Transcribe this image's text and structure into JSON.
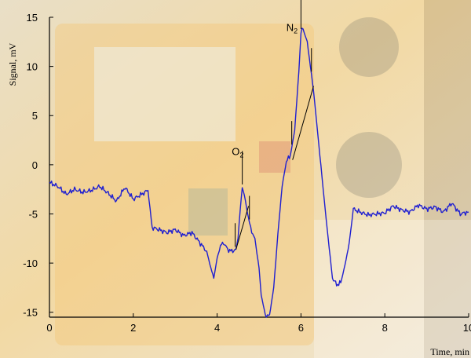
{
  "chart_data": {
    "type": "line",
    "xlabel": "Time, min",
    "ylabel": "Signal, mV",
    "xlim": [
      0,
      10
    ],
    "ylim": [
      -15.5,
      15
    ],
    "x_ticks": [
      0,
      2,
      4,
      6,
      8,
      10
    ],
    "y_ticks": [
      15,
      10,
      5,
      0,
      -5,
      -10,
      -15
    ],
    "grid": false,
    "legend": "none",
    "series": [
      {
        "color": "#1f1fd0",
        "x": [
          0,
          0.2,
          0.4,
          0.6,
          0.8,
          1.0,
          1.2,
          1.4,
          1.6,
          1.8,
          2.0,
          2.2,
          2.35,
          2.45,
          2.55,
          2.8,
          3.0,
          3.2,
          3.4,
          3.6,
          3.75,
          3.85,
          3.92,
          4.0,
          4.08,
          4.15,
          4.25,
          4.35,
          4.45,
          4.5,
          4.55,
          4.6,
          4.65,
          4.72,
          4.8,
          4.9,
          5.0,
          5.05,
          5.15,
          5.25,
          5.35,
          5.45,
          5.55,
          5.65,
          5.75,
          5.85,
          5.95,
          6.0,
          6.05,
          6.15,
          6.3,
          6.45,
          6.6,
          6.75,
          6.85,
          6.95,
          7.05,
          7.15,
          7.25,
          7.4,
          7.6,
          7.8,
          8.0,
          8.2,
          8.4,
          8.6,
          8.8,
          9.0,
          9.2,
          9.4,
          9.6,
          9.8,
          10.0
        ],
        "values": [
          -1.8,
          -2.2,
          -3.0,
          -2.5,
          -2.8,
          -2.6,
          -2.2,
          -2.9,
          -3.7,
          -2.3,
          -3.5,
          -3.0,
          -2.6,
          -6.4,
          -6.5,
          -6.9,
          -6.6,
          -7.2,
          -6.9,
          -8.0,
          -8.8,
          -10.5,
          -11.5,
          -9.5,
          -8.3,
          -7.9,
          -8.6,
          -8.8,
          -8.6,
          -7.4,
          -4.6,
          -2.3,
          -3.1,
          -4.8,
          -6.5,
          -7.5,
          -10.5,
          -13.2,
          -15.3,
          -15.3,
          -12.5,
          -7.0,
          -2.2,
          0.3,
          1.0,
          3.5,
          9.5,
          13.5,
          13.8,
          12.5,
          7.5,
          1.0,
          -5.5,
          -11.5,
          -12.2,
          -12.0,
          -10.2,
          -8.0,
          -4.5,
          -4.8,
          -5.1,
          -5.0,
          -4.9,
          -4.2,
          -4.6,
          -4.8,
          -4.1,
          -4.5,
          -4.3,
          -4.8,
          -3.9,
          -5.0,
          -4.8
        ]
      }
    ],
    "annotations": [
      {
        "label_main": "O",
        "label_sub": "2",
        "x": 4.35,
        "y": 1.0
      },
      {
        "label_main": "N",
        "label_sub": "2",
        "x": 5.65,
        "y": 13.6
      }
    ],
    "peak_markers": [
      {
        "x": [
          4.43,
          4.6,
          4.77
        ],
        "baseline": [
          [
            4.45,
            -8.6
          ],
          [
            4.75,
            -4.2
          ]
        ]
      },
      {
        "x": [
          5.78,
          6.0,
          6.25
        ],
        "baseline": [
          [
            5.8,
            0.5
          ],
          [
            6.3,
            8.0
          ]
        ]
      }
    ]
  }
}
